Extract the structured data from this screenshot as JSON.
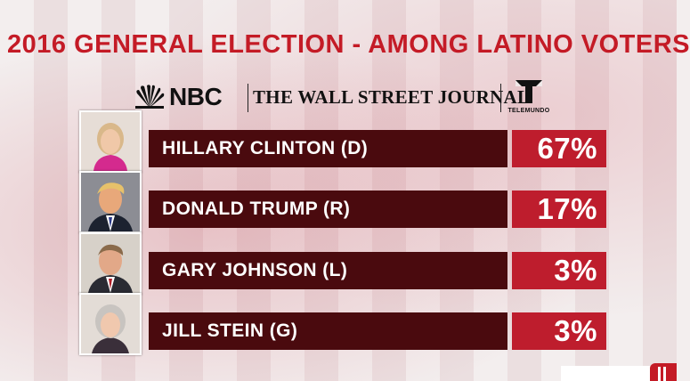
{
  "headline": "2016 GENERAL ELECTION - AMONG LATINO VOTERS",
  "logos": {
    "nbc": "NBC",
    "wsj": "THE WALL STREET JOURNAL",
    "telemundo": "TELEMUNDO"
  },
  "candidates": [
    {
      "name": "HILLARY CLINTON (D)",
      "percent": "67%",
      "portrait": "hillary-clinton-portrait"
    },
    {
      "name": "DONALD TRUMP (R)",
      "percent": "17%",
      "portrait": "donald-trump-portrait"
    },
    {
      "name": "GARY JOHNSON (L)",
      "percent": "3%",
      "portrait": "gary-johnson-portrait"
    },
    {
      "name": "JILL STEIN (G)",
      "percent": "3%",
      "portrait": "jill-stein-portrait"
    }
  ],
  "colors": {
    "headline": "#c41b26",
    "name_bar": "#4a0a0e",
    "percent_box": "#be1d2d"
  }
}
